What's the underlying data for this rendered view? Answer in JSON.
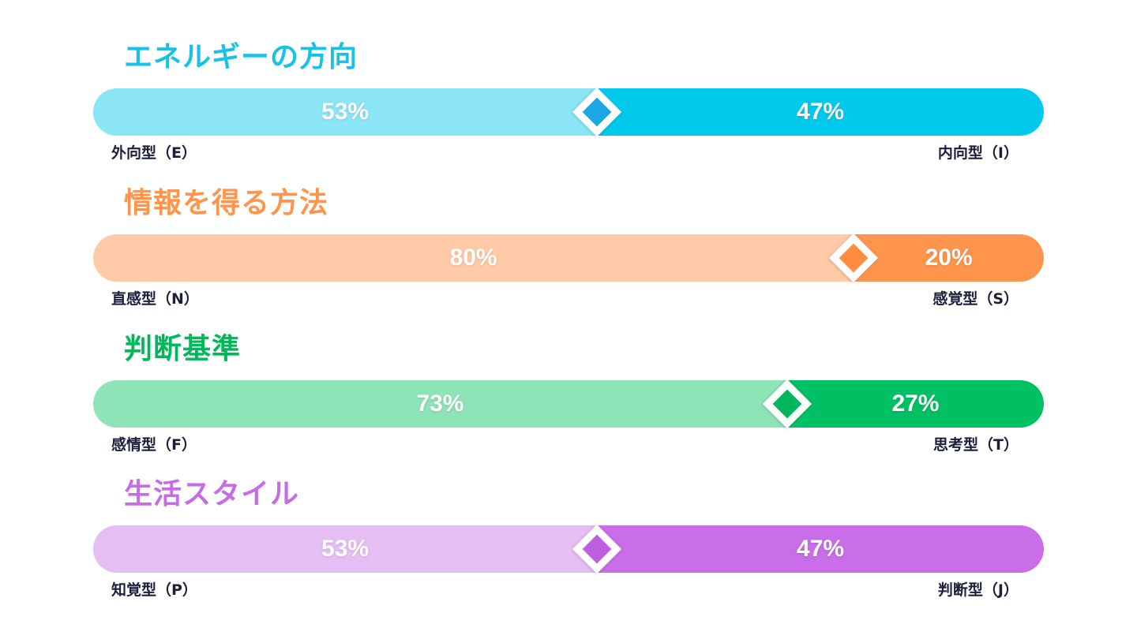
{
  "colors": {
    "pole_text": "#1c1f3c"
  },
  "chart_data": [
    {
      "type": "bar",
      "title": "エネルギーの方向",
      "left": {
        "label": "外向型（E）",
        "value": 53,
        "display": "53%"
      },
      "right": {
        "label": "内向型（I）",
        "value": 47,
        "display": "47%"
      },
      "colors": {
        "title": "#17c2e6",
        "left": "#8be5f5",
        "right": "#00c9ec",
        "marker": "#1ca6e3"
      }
    },
    {
      "type": "bar",
      "title": "情報を得る方法",
      "left": {
        "label": "直感型（N）",
        "value": 80,
        "display": "80%"
      },
      "right": {
        "label": "感覚型（S）",
        "value": 20,
        "display": "20%"
      },
      "colors": {
        "title": "#ff944d",
        "left": "#ffcaa8",
        "right": "#ff944d",
        "marker": "#ff8c3f"
      }
    },
    {
      "type": "bar",
      "title": "判断基準",
      "left": {
        "label": "感情型（F）",
        "value": 73,
        "display": "73%"
      },
      "right": {
        "label": "思考型（T）",
        "value": 27,
        "display": "27%"
      },
      "colors": {
        "title": "#00b859",
        "left": "#8ee3b7",
        "right": "#00c064",
        "marker": "#00b85b"
      }
    },
    {
      "type": "bar",
      "title": "生活スタイル",
      "left": {
        "label": "知覚型（P）",
        "value": 53,
        "display": "53%"
      },
      "right": {
        "label": "判断型（J）",
        "value": 47,
        "display": "47%"
      },
      "colors": {
        "title": "#c56ce6",
        "left": "#e5bff4",
        "right": "#c96de8",
        "marker": "#bf5fe0"
      }
    }
  ]
}
